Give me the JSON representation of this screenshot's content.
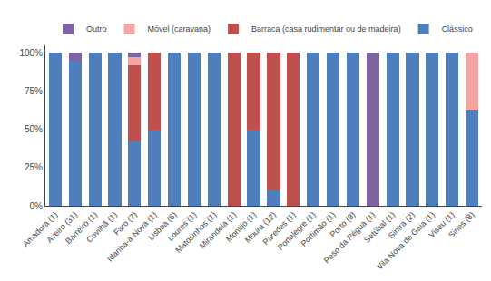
{
  "chart_data": {
    "type": "bar",
    "stacked": true,
    "categories": [
      "Amadora (1)",
      "Aveiro (31)",
      "Barreiro (1)",
      "Covilhã (1)",
      "Faro (7)",
      "Idanha-a-Nova (1)",
      "Lisboa (6)",
      "Loures (1)",
      "Matosinhos (1)",
      "Mirandela (1)",
      "Montijo (1)",
      "Moura (12)",
      "Paredes (1)",
      "Portalegre (1)",
      "Portimão (1)",
      "Porto (3)",
      "Peso da Régua (1)",
      "Setúbal (1)",
      "Sintra (2)",
      "Vila Nova de Gaia (1)",
      "Viseu (1)",
      "Sines (8)"
    ],
    "series": [
      {
        "name": "Clássico",
        "color": "#4e7fbc",
        "values": [
          100,
          95,
          100,
          100,
          42,
          50,
          100,
          100,
          100,
          0,
          50,
          10,
          0,
          100,
          100,
          100,
          0,
          100,
          100,
          100,
          100,
          63
        ]
      },
      {
        "name": "Barraca (casa rudimentar ou de madeira)",
        "color": "#c0504d",
        "values": [
          0,
          0,
          0,
          0,
          50,
          50,
          0,
          0,
          0,
          100,
          50,
          90,
          100,
          0,
          0,
          0,
          0,
          0,
          0,
          0,
          0,
          0
        ]
      },
      {
        "name": "Móvel (caravana)",
        "color": "#f4a4a1",
        "values": [
          0,
          0,
          0,
          0,
          5,
          0,
          0,
          0,
          0,
          0,
          0,
          0,
          0,
          0,
          0,
          0,
          0,
          0,
          0,
          0,
          0,
          37
        ]
      },
      {
        "name": "Outro",
        "color": "#8064a2",
        "values": [
          0,
          5,
          0,
          0,
          3,
          0,
          0,
          0,
          0,
          0,
          0,
          0,
          0,
          0,
          0,
          0,
          100,
          0,
          0,
          0,
          0,
          0
        ]
      }
    ],
    "ylim": [
      0,
      105
    ],
    "yticks": [
      {
        "value": 0,
        "label": "0%"
      },
      {
        "value": 25,
        "label": "25%"
      },
      {
        "value": 50,
        "label": "50%"
      },
      {
        "value": 75,
        "label": "75%"
      },
      {
        "value": 100,
        "label": "100%"
      }
    ],
    "grid": false,
    "legend": "top"
  }
}
